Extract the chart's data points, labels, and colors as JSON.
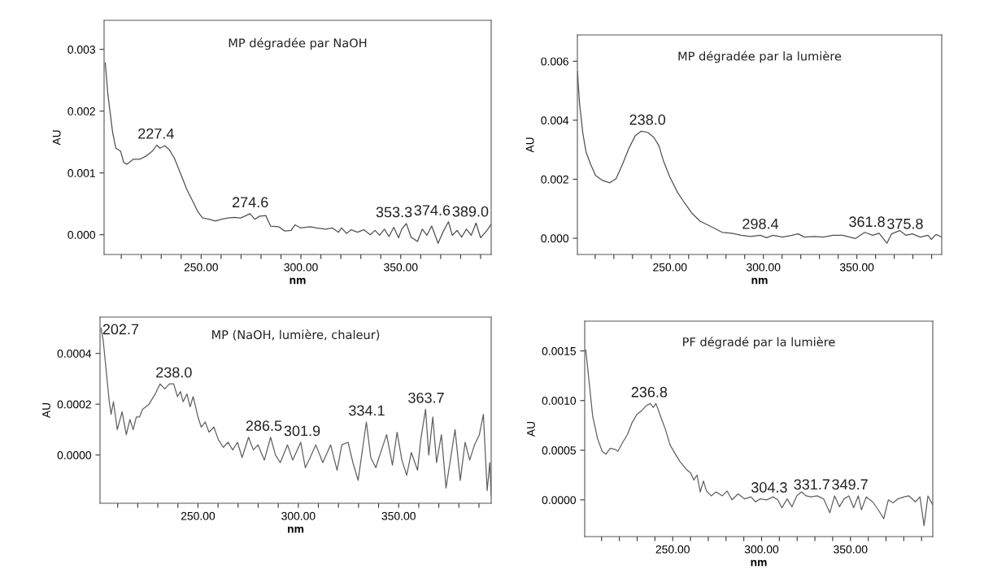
{
  "chart_data": [
    {
      "type": "line",
      "title": "MP dégradée par NaOH",
      "xlabel": "nm",
      "ylabel": "AU",
      "color": "#505050",
      "x": [
        202,
        203.3,
        205.7,
        207.3,
        209.7,
        211.2,
        212.8,
        216,
        219.2,
        222.3,
        225.5,
        227.8,
        229.4,
        231.8,
        234.2,
        236.6,
        239.7,
        242.9,
        246,
        248.4,
        250.8,
        254,
        257.1,
        260.3,
        263.4,
        266.6,
        269.8,
        274.5,
        276.9,
        279.3,
        282.4,
        284.8,
        288.8,
        291.9,
        295.1,
        297,
        299.8,
        304.6,
        307.8,
        312.5,
        315.7,
        318.8,
        320.4,
        322.8,
        325.2,
        328.3,
        331.5,
        334.7,
        337.1,
        339.4,
        341.8,
        344.1,
        346.5,
        348.9,
        350.5,
        352.8,
        355.2,
        358.4,
        360.8,
        363.1,
        365.5,
        368.7,
        371.1,
        373.9,
        375.8,
        378.2,
        380.5,
        382.9,
        385.3,
        387.7,
        390,
        393.2,
        395.1
      ],
      "values": [
        0.00278,
        0.00227,
        0.00165,
        0.0014,
        0.00135,
        0.00117,
        0.00114,
        0.00122,
        0.00122,
        0.00127,
        0.00135,
        0.00145,
        0.0014,
        0.00144,
        0.00137,
        0.00124,
        0.00099,
        0.00073,
        0.00053,
        0.00037,
        0.00027,
        0.00025,
        0.00022,
        0.00025,
        0.00027,
        0.00028,
        0.00027,
        0.00034,
        0.00025,
        0.0003,
        0.00031,
        0.00014,
        0.00013,
        6e-05,
        7e-05,
        0.00016,
        0.00011,
        0.00013,
        0.00011,
        9e-05,
        0.00011,
        4e-05,
        0.00011,
        2e-05,
        8e-05,
        4e-05,
        8e-05,
        0.0,
        7e-05,
        -1e-05,
        9e-05,
        -3e-05,
        0.00012,
        -5e-05,
        9e-05,
        0.00018,
        -4e-05,
        -0.00011,
        9e-05,
        -1e-05,
        0.00014,
        -0.00014,
        4e-05,
        0.00021,
        -1e-05,
        7e-05,
        -4e-05,
        9e-05,
        -1e-05,
        0.00019,
        -5e-05,
        7e-05,
        0.00016
      ],
      "annotations": [
        {
          "text": "227.4",
          "x": 227.4,
          "y": 0.00145
        },
        {
          "text": "274.6",
          "x": 274.6,
          "y": 0.00034
        },
        {
          "text": "353.3",
          "x": 353.3,
          "y": 0.00018
        },
        {
          "text": "374.6",
          "x": 374.6,
          "y": 0.00021
        },
        {
          "text": "389.0",
          "x": 389.0,
          "y": 0.00019
        }
      ],
      "xlim": [
        201.4,
        395.3
      ],
      "ylim": [
        -0.00032,
        0.00347
      ],
      "xticks": [
        {
          "value": 210,
          "label": null
        },
        {
          "value": 220,
          "label": null
        },
        {
          "value": 230,
          "label": null
        },
        {
          "value": 240,
          "label": null
        },
        {
          "value": 250,
          "label": "250.00"
        },
        {
          "value": 260,
          "label": null
        },
        {
          "value": 270,
          "label": null
        },
        {
          "value": 280,
          "label": null
        },
        {
          "value": 290,
          "label": null
        },
        {
          "value": 300,
          "label": "300.00"
        },
        {
          "value": 310,
          "label": null
        },
        {
          "value": 320,
          "label": null
        },
        {
          "value": 330,
          "label": null
        },
        {
          "value": 340,
          "label": null
        },
        {
          "value": 350,
          "label": "350.00"
        },
        {
          "value": 360,
          "label": null
        },
        {
          "value": 370,
          "label": null
        },
        {
          "value": 380,
          "label": null
        },
        {
          "value": 390,
          "label": null
        }
      ],
      "yticks": [
        {
          "value": 0.0,
          "label": "0.000"
        },
        {
          "value": 0.001,
          "label": "0.001"
        },
        {
          "value": 0.002,
          "label": "0.002"
        },
        {
          "value": 0.003,
          "label": "0.003"
        }
      ]
    },
    {
      "type": "line",
      "title": "MP dégradée par la lumière",
      "xlabel": "nm",
      "ylabel": "AU",
      "color": "#505050",
      "x": [
        200.5,
        201.7,
        203.4,
        205.1,
        207.6,
        210.2,
        213.6,
        217.8,
        221.2,
        224.6,
        228,
        231.4,
        234.7,
        238.1,
        241.5,
        244.1,
        246.6,
        250,
        254.2,
        257.6,
        261.9,
        266.1,
        271.2,
        274.6,
        278,
        283.1,
        288.1,
        293.2,
        298.3,
        301.7,
        305.1,
        310.2,
        315.3,
        318.6,
        322,
        327.1,
        332.2,
        337.3,
        342.4,
        349.2,
        354.2,
        358.5,
        361.9,
        366.1,
        368.6,
        372.9,
        376.3,
        379.7,
        383.9,
        388.1,
        389.8,
        392.4,
        395.4
      ],
      "values": [
        0.00566,
        0.00453,
        0.00357,
        0.00293,
        0.0025,
        0.00213,
        0.00197,
        0.00188,
        0.00202,
        0.0025,
        0.00304,
        0.00347,
        0.00363,
        0.00359,
        0.00341,
        0.00314,
        0.00261,
        0.00207,
        0.00154,
        0.00122,
        0.00084,
        0.00058,
        0.00042,
        0.00031,
        0.0002,
        0.00017,
        0.0001,
        6e-05,
        0.0001,
        2e-05,
        0.0001,
        4e-05,
        0.0001,
        0.00015,
        4e-05,
        6e-05,
        4e-05,
        0.0001,
        0.0001,
        -1e-05,
        0.0002,
        0.0001,
        0.00017,
        -0.00017,
        0.00015,
        0.00026,
        0.0001,
        0.00015,
        4e-05,
        0.0001,
        -4e-05,
        0.00013,
        4e-05
      ],
      "annotations": [
        {
          "text": "238.0",
          "x": 238.0,
          "y": 0.00363
        },
        {
          "text": "298.4",
          "x": 298.4,
          "y": 0.0001
        },
        {
          "text": "361.8",
          "x": 361.8,
          "y": 0.00017
        },
        {
          "text": "375.8",
          "x": 375.8,
          "y": 0.0001
        }
      ],
      "xlim": [
        200.5,
        395.4
      ],
      "ylim": [
        -0.00055,
        0.00689
      ],
      "xticks": [
        {
          "value": 210,
          "label": null
        },
        {
          "value": 220,
          "label": null
        },
        {
          "value": 230,
          "label": null
        },
        {
          "value": 240,
          "label": null
        },
        {
          "value": 250,
          "label": "250.00"
        },
        {
          "value": 260,
          "label": null
        },
        {
          "value": 270,
          "label": null
        },
        {
          "value": 280,
          "label": null
        },
        {
          "value": 290,
          "label": null
        },
        {
          "value": 300,
          "label": "300.00"
        },
        {
          "value": 310,
          "label": null
        },
        {
          "value": 320,
          "label": null
        },
        {
          "value": 330,
          "label": null
        },
        {
          "value": 340,
          "label": null
        },
        {
          "value": 350,
          "label": "350.00"
        },
        {
          "value": 360,
          "label": null
        },
        {
          "value": 370,
          "label": null
        },
        {
          "value": 380,
          "label": null
        },
        {
          "value": 390,
          "label": null
        }
      ],
      "yticks": [
        {
          "value": 0.0,
          "label": "0.000"
        },
        {
          "value": 0.002,
          "label": "0.002"
        },
        {
          "value": 0.004,
          "label": "0.004"
        },
        {
          "value": 0.006,
          "label": "0.006"
        }
      ]
    },
    {
      "type": "line",
      "title": "MP (NaOH, lumière, chaleur)",
      "xlabel": "nm",
      "ylabel": "AU",
      "color": "#606060",
      "x": [
        201.7,
        202.8,
        204.3,
        205.8,
        206.7,
        207.9,
        209.8,
        212.2,
        214.3,
        216.1,
        217.7,
        219.3,
        220.9,
        222.4,
        225.6,
        228.7,
        231.1,
        233.5,
        235.8,
        237.9,
        239.8,
        241.3,
        242.6,
        244.5,
        246.1,
        247.6,
        250,
        251.6,
        253.6,
        255.5,
        257.9,
        260.2,
        262.6,
        265,
        267.3,
        269.7,
        272,
        275.2,
        277.6,
        279.9,
        283.1,
        286.2,
        288.6,
        291,
        294.6,
        297.2,
        301.2,
        303.5,
        305.9,
        308.7,
        312.2,
        316.1,
        319.3,
        321.7,
        324.8,
        327.2,
        329.8,
        333.9,
        336.1,
        338.6,
        340.6,
        344,
        346.9,
        349.2,
        351.6,
        354,
        356.3,
        359.4,
        361,
        363.4,
        365,
        367,
        368.9,
        371.3,
        373.6,
        378.1,
        380.7,
        383.1,
        385.4,
        387.8,
        390.2,
        392.2,
        394.1,
        395.4,
        396.1
      ],
      "values": [
        0.0005,
        0.00045,
        0.00033,
        0.00021,
        0.00016,
        0.00021,
        0.0001,
        0.00017,
        8e-05,
        0.00014,
        0.0001,
        0.00015,
        0.00015,
        0.00018,
        0.0002,
        0.00024,
        0.00028,
        0.00026,
        0.00028,
        0.00028,
        0.00023,
        0.00025,
        0.00021,
        0.00024,
        0.00019,
        0.00023,
        0.00015,
        0.00011,
        0.00013,
        9e-05,
        0.00011,
        6e-05,
        3e-05,
        5e-05,
        2e-05,
        5e-05,
        -1e-05,
        7e-05,
        2e-05,
        4e-05,
        -2e-05,
        7e-05,
        0.0,
        -3e-05,
        4e-05,
        -2e-05,
        5e-05,
        -5e-05,
        -1e-05,
        4e-05,
        -3e-05,
        4e-05,
        -6e-05,
        4e-05,
        5e-05,
        -3e-05,
        -0.0001,
        0.00013,
        -1e-05,
        -5e-05,
        0.0,
        8e-05,
        -4e-05,
        9e-05,
        -2e-05,
        -8e-05,
        1e-05,
        -6e-05,
        6e-05,
        0.00018,
        0.0,
        0.00015,
        -3e-05,
        8e-05,
        -0.00013,
        0.0001,
        -0.0001,
        5e-05,
        -2e-05,
        4e-05,
        8e-05,
        0.00016,
        -0.00014,
        -3e-05,
        -0.00016
      ],
      "annotations": [
        {
          "text": "202.7",
          "x": 202.7,
          "y": 0.00045
        },
        {
          "text": "238.0",
          "x": 238.0,
          "y": 0.00028
        },
        {
          "text": "286.5",
          "x": 286.5,
          "y": 7e-05
        },
        {
          "text": "301.9",
          "x": 301.9,
          "y": 5e-05
        },
        {
          "text": "334.1",
          "x": 334.1,
          "y": 0.00013
        },
        {
          "text": "363.7",
          "x": 363.7,
          "y": 0.00018
        }
      ],
      "xlim": [
        201.2,
        396.1
      ],
      "ylim": [
        -0.00019,
        0.000543
      ],
      "xticks": [
        {
          "value": 210,
          "label": null
        },
        {
          "value": 220,
          "label": null
        },
        {
          "value": 230,
          "label": null
        },
        {
          "value": 240,
          "label": null
        },
        {
          "value": 250,
          "label": "250.00"
        },
        {
          "value": 260,
          "label": null
        },
        {
          "value": 270,
          "label": null
        },
        {
          "value": 280,
          "label": null
        },
        {
          "value": 290,
          "label": null
        },
        {
          "value": 300,
          "label": "300.00"
        },
        {
          "value": 310,
          "label": null
        },
        {
          "value": 320,
          "label": null
        },
        {
          "value": 330,
          "label": null
        },
        {
          "value": 340,
          "label": null
        },
        {
          "value": 350,
          "label": "350.00"
        },
        {
          "value": 360,
          "label": null
        },
        {
          "value": 370,
          "label": null
        },
        {
          "value": 380,
          "label": null
        },
        {
          "value": 390,
          "label": null
        }
      ],
      "yticks": [
        {
          "value": 0.0,
          "label": "0.0000"
        },
        {
          "value": 0.0002,
          "label": "0.0002"
        },
        {
          "value": 0.0004,
          "label": "0.0004"
        }
      ]
    },
    {
      "type": "line",
      "title": "PF dégradé par la lumière",
      "xlabel": "nm",
      "ylabel": "AU",
      "color": "#606060",
      "x": [
        201.1,
        202.8,
        205,
        207.7,
        210.3,
        212.5,
        214.8,
        217.4,
        219.2,
        221.9,
        224.6,
        227.2,
        229.9,
        232.6,
        235.2,
        237.4,
        239.1,
        240.6,
        243.2,
        245.9,
        248.6,
        251.2,
        253.9,
        257.5,
        260.1,
        261.9,
        263.7,
        265.5,
        267.3,
        269,
        271.7,
        274.4,
        277.9,
        280.6,
        283.3,
        286.8,
        290.4,
        294,
        296.6,
        299.3,
        302.8,
        306.4,
        309.1,
        311.4,
        314.4,
        317.1,
        319.8,
        322.4,
        325.1,
        327.8,
        331.3,
        334.9,
        338.4,
        341.1,
        343.8,
        346.4,
        349.1,
        351.8,
        354.4,
        356.2,
        358.9,
        362.5,
        366,
        368.7,
        371.3,
        374,
        376.7,
        380.2,
        382.9,
        386.5,
        389.1,
        391.4,
        393.6,
        396.3
      ],
      "values": [
        0.00151,
        0.00122,
        0.00084,
        0.00062,
        0.00049,
        0.00046,
        0.00052,
        0.00051,
        0.00049,
        0.00058,
        0.00066,
        0.00078,
        0.00086,
        0.0009,
        0.00095,
        0.00097,
        0.00093,
        0.00097,
        0.00084,
        0.00071,
        0.00055,
        0.00047,
        0.00039,
        0.00031,
        0.00027,
        0.0002,
        0.00025,
        8e-05,
        0.00019,
        9e-05,
        4e-05,
        8e-05,
        4e-05,
        9e-05,
        0.0,
        6e-05,
        1e-05,
        3e-05,
        -2e-05,
        1e-05,
        0.0,
        3e-05,
        0.0,
        -8e-05,
        1e-05,
        -7e-05,
        4e-05,
        8e-05,
        4e-05,
        3e-05,
        4e-05,
        1e-05,
        -0.00013,
        4e-05,
        -7e-05,
        1e-05,
        4e-05,
        -8e-05,
        4e-05,
        -0.0001,
        3e-05,
        -2e-05,
        -0.00011,
        -0.00019,
        0.0,
        -3e-05,
        1e-05,
        3e-05,
        4e-05,
        -2e-05,
        3e-05,
        -0.00026,
        4e-05,
        -5e-05
      ],
      "annotations": [
        {
          "text": "236.8",
          "x": 236.8,
          "y": 0.00097
        },
        {
          "text": "304.3",
          "x": 304.3,
          "y": 1e-05
        },
        {
          "text": "331.7",
          "x": 331.7,
          "y": 4e-05
        },
        {
          "text": "349.7",
          "x": 349.7,
          "y": 4e-05
        }
      ],
      "xlim": [
        200.5,
        396.3
      ],
      "ylim": [
        -0.00037,
        0.0018
      ],
      "xticks": [
        {
          "value": 210,
          "label": null
        },
        {
          "value": 220,
          "label": null
        },
        {
          "value": 230,
          "label": null
        },
        {
          "value": 240,
          "label": null
        },
        {
          "value": 250,
          "label": "250.00"
        },
        {
          "value": 260,
          "label": null
        },
        {
          "value": 270,
          "label": null
        },
        {
          "value": 280,
          "label": null
        },
        {
          "value": 290,
          "label": null
        },
        {
          "value": 300,
          "label": "300.00"
        },
        {
          "value": 310,
          "label": null
        },
        {
          "value": 320,
          "label": null
        },
        {
          "value": 330,
          "label": null
        },
        {
          "value": 340,
          "label": null
        },
        {
          "value": 350,
          "label": "350.00"
        },
        {
          "value": 360,
          "label": null
        },
        {
          "value": 370,
          "label": null
        },
        {
          "value": 380,
          "label": null
        },
        {
          "value": 390,
          "label": null
        }
      ],
      "yticks": [
        {
          "value": 0.0,
          "label": "0.0000"
        },
        {
          "value": 0.0005,
          "label": "0.0005"
        },
        {
          "value": 0.001,
          "label": "0.0010"
        },
        {
          "value": 0.0015,
          "label": "0.0015"
        }
      ]
    }
  ]
}
